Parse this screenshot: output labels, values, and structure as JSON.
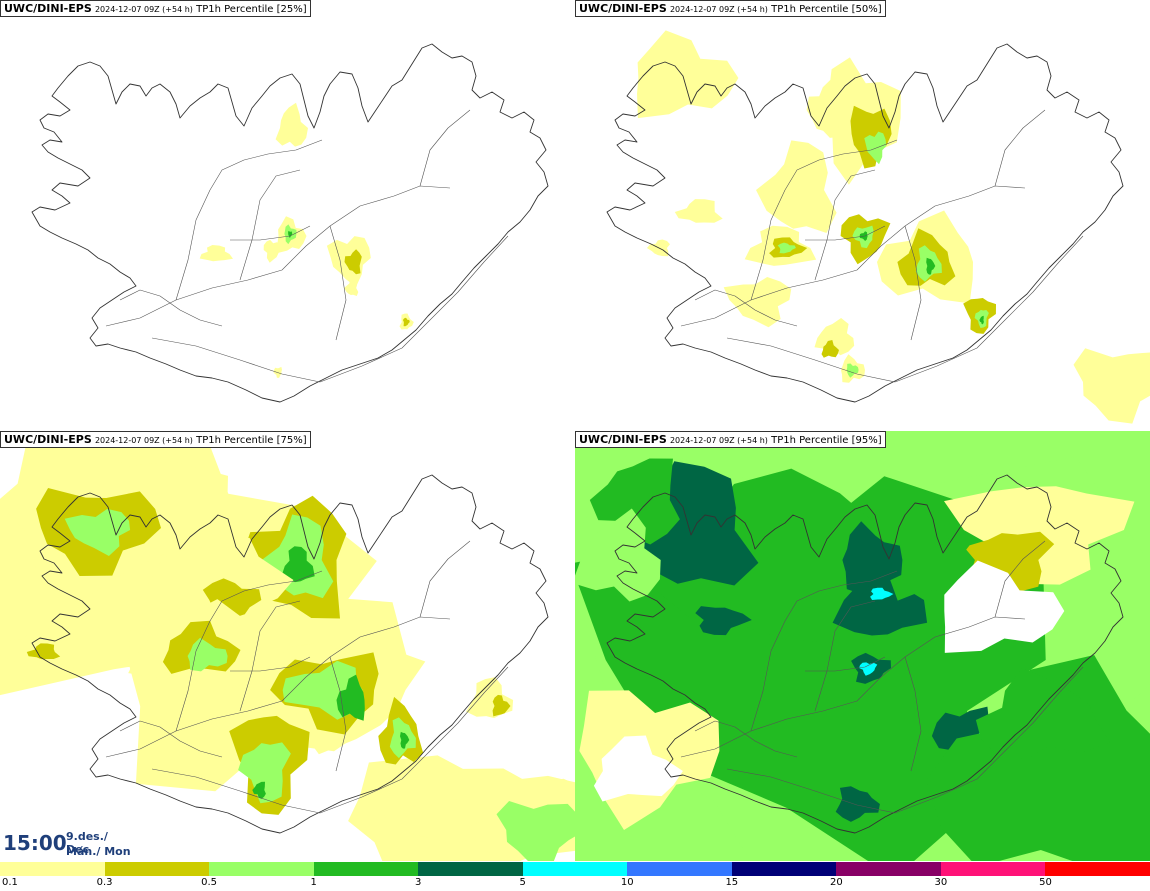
{
  "panels": [
    {
      "model": "UWC/DINI-EPS",
      "run": "2024-12-07 09Z (+54 h)",
      "product": "TP1h Percentile",
      "pct": "[25%]",
      "level": 0
    },
    {
      "model": "UWC/DINI-EPS",
      "run": "2024-12-07 09Z (+54 h)",
      "product": "TP1h Percentile",
      "pct": "[50%]",
      "level": 1
    },
    {
      "model": "UWC/DINI-EPS",
      "run": "2024-12-07 09Z (+54 h)",
      "product": "TP1h Percentile",
      "pct": "[75%]",
      "level": 2
    },
    {
      "model": "UWC/DINI-EPS",
      "run": "2024-12-07 09Z (+54 h)",
      "product": "TP1h Percentile",
      "pct": "[95%]",
      "level": 3
    }
  ],
  "valid_time": {
    "clock": "15:00",
    "date_line1": "9.des./ Dec",
    "date_line2": "Mán./ Mon"
  },
  "legend": {
    "colors": [
      "#ffff99",
      "#cccc00",
      "#99ff66",
      "#22bb22",
      "#006644",
      "#00ffff",
      "#3377ff",
      "#000077",
      "#880066",
      "#ff1177",
      "#ff0000"
    ],
    "labels": [
      "0.1",
      "0.3",
      "0.5",
      "1",
      "3",
      "5",
      "10",
      "15",
      "20",
      "30",
      "50"
    ]
  },
  "map_colors": {
    "coast": "#333333",
    "road": "#555555",
    "sea": "#ffffff",
    "land": "#ffffff"
  }
}
